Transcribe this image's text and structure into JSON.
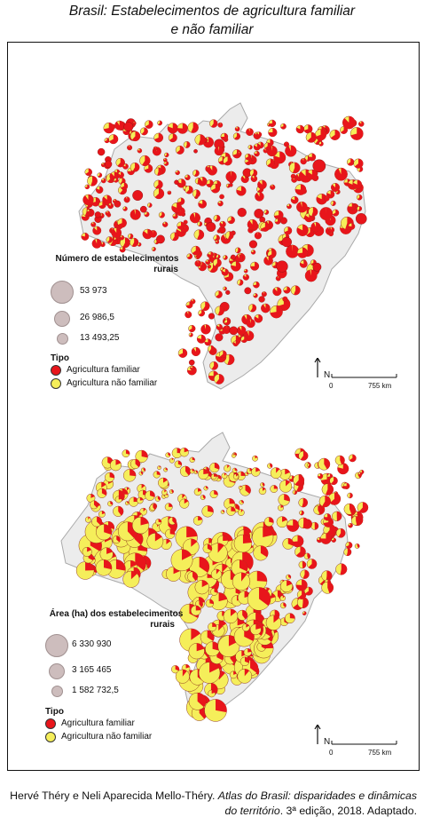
{
  "title_line1": "Brasil: Estabelecimentos de agricultura familiar",
  "title_line2": "e não familiar",
  "map1": {
    "legend_title": "Número de estabelecimentos rurais",
    "legend_title_l1": "Número de estabelecimentos",
    "legend_title_l2": "rurais",
    "sizes": [
      "53 973",
      "26 986,5",
      "13 493,25"
    ],
    "tipo_title": "Tipo",
    "tipo_items": [
      "Agricultura familiar",
      "Agricultura não familiar"
    ]
  },
  "map2": {
    "legend_title_l1": "Área (ha) dos estabelecimentos",
    "legend_title_l2": "rurais",
    "sizes": [
      "6 330 930",
      "3 165 465",
      "1 582 732,5"
    ],
    "tipo_title": "Tipo",
    "tipo_items": [
      "Agricultura familiar",
      "Agricultura não familiar"
    ]
  },
  "north_label": "N",
  "scale_zero": "0",
  "scale_km": "755 km",
  "colors": {
    "familiar": "#e8151b",
    "nao_familiar": "#f5ee5a",
    "land": "#ececec",
    "border": "#a9a9a9",
    "size_circle": "#cdbdbd"
  },
  "source_part1": "Hervé Théry e Neli Aparecida Mello-Théry. ",
  "source_title": "Atlas do Brasil: disparidades e dinâmicas do território",
  "source_part2": ". 3ª edição, 2018. Adaptado."
}
